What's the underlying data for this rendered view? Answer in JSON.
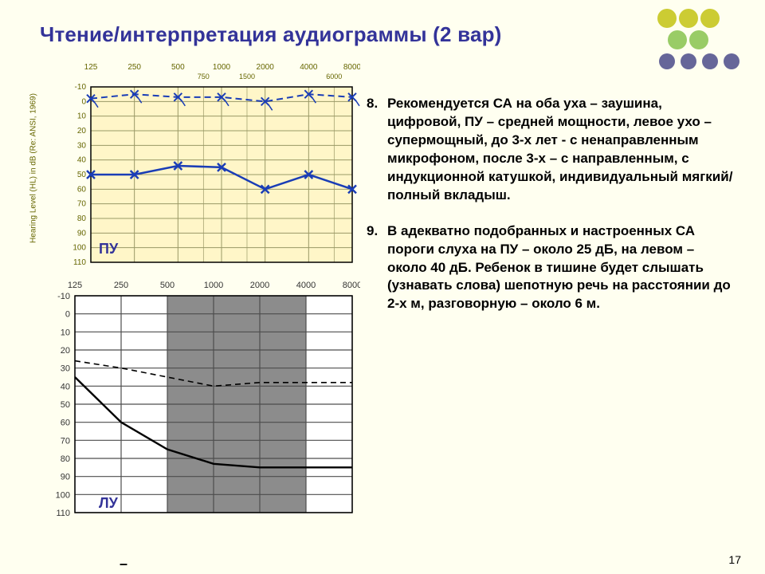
{
  "title": "Чтение/интерпретация аудиограммы (2 вар)",
  "pageNumber": "17",
  "decoColors": [
    "#cccc33",
    "#cccc33",
    "#cccc33",
    "#99cc66",
    "#99cc66",
    "#666699",
    "#666699",
    "#666699",
    "#666699"
  ],
  "text": {
    "item8_num": "8.",
    "item8": "Рекомендуется СА на оба уха – заушина, цифровой, ПУ – средней мощности, левое ухо – супермощный, до 3-х лет  - с ненаправленным микрофоном, после 3-х – с направленным, с индукционной катушкой, индивидуальный мягкий/полный вкладыш.",
    "item9_num": "9.",
    "item9": "В адекватно подобранных и настроенных СА пороги слуха на ПУ – около 25 дБ, на левом – около 40 дБ. Ребенок в тишине будет слышать (узнавать слова) шепотную речь на расстоянии до 2-х м, разговорную – около 6 м."
  },
  "chart1": {
    "label": "ПУ",
    "yaxisLabel": "Hearing Level (HL) in dB (Re: ANSI, 1969)",
    "bg": "#fff6c8",
    "gridColor": "#999966",
    "axisColor": "#000000",
    "textColor": "#666600",
    "xTop": [
      125,
      250,
      500,
      1000,
      2000,
      4000,
      8000
    ],
    "xTopSub": [
      750,
      1500,
      6000
    ],
    "yTicks": [
      -10,
      0,
      10,
      20,
      30,
      40,
      50,
      60,
      70,
      80,
      90,
      100,
      110
    ],
    "lineColor": "#1a3db6",
    "dashed": {
      "x": [
        125,
        250,
        500,
        1000,
        2000,
        4000,
        8000
      ],
      "y": [
        -2,
        -5,
        -3,
        -3,
        0,
        -5,
        -3
      ]
    },
    "solid": {
      "x": [
        125,
        250,
        500,
        1000,
        2000,
        4000,
        8000
      ],
      "y": [
        50,
        50,
        44,
        45,
        60,
        50,
        60
      ]
    },
    "markerSize": 5
  },
  "chart2": {
    "label": "ЛУ",
    "gridColor": "#4d4d4d",
    "bgWhite": "#ffffff",
    "bgGray": "#8c8c8c",
    "axisColor": "#000000",
    "textColor": "#333333",
    "xTop": [
      125,
      250,
      500,
      1000,
      2000,
      4000,
      8000
    ],
    "yTicks": [
      -10,
      0,
      10,
      20,
      30,
      40,
      50,
      60,
      70,
      80,
      90,
      100,
      110
    ],
    "dashed": {
      "x": [
        125,
        250,
        500,
        1000,
        2000,
        4000,
        8000
      ],
      "y": [
        26,
        30,
        35,
        40,
        38,
        38,
        38
      ]
    },
    "solid": {
      "x": [
        125,
        250,
        500,
        1000,
        2000,
        4000,
        8000
      ],
      "y": [
        35,
        60,
        75,
        83,
        85,
        85,
        85
      ]
    }
  }
}
